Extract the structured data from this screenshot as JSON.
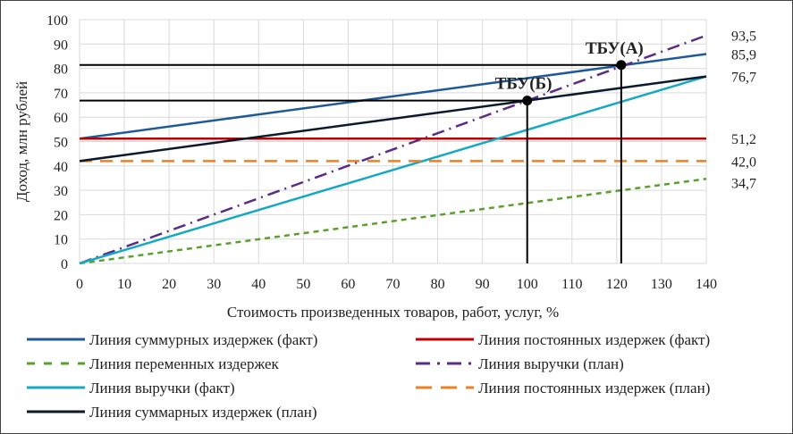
{
  "chart_data": {
    "type": "line",
    "title": "",
    "xlabel": "Стоимость произведенных товаров, работ, услуг, %",
    "ylabel": "Доход, млн рублей",
    "xlim": [
      0,
      140
    ],
    "ylim": [
      0,
      100
    ],
    "xticks": [
      0,
      10,
      20,
      30,
      40,
      50,
      60,
      70,
      80,
      90,
      100,
      110,
      120,
      130,
      140
    ],
    "yticks": [
      0,
      10,
      20,
      30,
      40,
      50,
      60,
      70,
      80,
      90,
      100
    ],
    "grid": true,
    "legend_position": "bottom",
    "series": [
      {
        "name": "Линия суммурных издержек (факт)",
        "x": [
          0,
          140
        ],
        "y": [
          51.2,
          85.9
        ],
        "color": "#1f5a96",
        "style": "solid"
      },
      {
        "name": "Линия постоянных издержек (факт)",
        "x": [
          0,
          140
        ],
        "y": [
          51.2,
          51.2
        ],
        "color": "#c00000",
        "style": "solid"
      },
      {
        "name": "Линия переменных издержек",
        "x": [
          0,
          140
        ],
        "y": [
          0,
          34.7
        ],
        "color": "#5aa02c",
        "style": "dash"
      },
      {
        "name": "Линия выручки (план)",
        "x": [
          0,
          140
        ],
        "y": [
          0,
          93.5
        ],
        "color": "#5b2c83",
        "style": "dashdot"
      },
      {
        "name": "Линия выручки (факт)",
        "x": [
          0,
          140
        ],
        "y": [
          0,
          76.7
        ],
        "color": "#17a9c1",
        "style": "solid"
      },
      {
        "name": "Линия постоянных издержек (план)",
        "x": [
          0,
          140
        ],
        "y": [
          42.0,
          42.0
        ],
        "color": "#f07f22",
        "style": "longdash"
      },
      {
        "name": "Линия суммарных издержек (план)",
        "x": [
          0,
          140
        ],
        "y": [
          42.0,
          76.7
        ],
        "color": "#0a1a2e",
        "style": "solid"
      }
    ],
    "end_labels": [
      "93,5",
      "85,9",
      "76,7",
      "51,2",
      "42,0",
      "34,7"
    ],
    "end_label_values": [
      93.5,
      85.9,
      76.7,
      51.2,
      42.0,
      34.7
    ],
    "points": [
      {
        "label": "ТБУ(А)",
        "x": 121,
        "y": 81.4
      },
      {
        "label": "ТБУ(Б)",
        "x": 100,
        "y": 66.8
      }
    ]
  }
}
